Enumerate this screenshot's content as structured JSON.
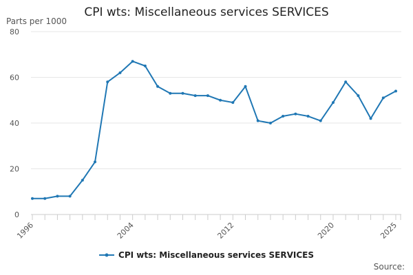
{
  "chart_data": {
    "type": "line",
    "title": "CPI wts: Miscellaneous services SERVICES",
    "ylabel": "Parts per 1000",
    "xlabel": "",
    "ylim": [
      0,
      80
    ],
    "yticks": [
      0,
      20,
      40,
      60,
      80
    ],
    "xlim": [
      1996,
      2025
    ],
    "xticks": [
      1996,
      2004,
      2012,
      2020,
      2025
    ],
    "grid": true,
    "legend_position": "bottom",
    "color": "#1f77b4",
    "series": [
      {
        "name": "CPI wts: Miscellaneous services SERVICES",
        "x": [
          1996,
          1997,
          1998,
          1999,
          2000,
          2001,
          2002,
          2003,
          2004,
          2005,
          2006,
          2007,
          2008,
          2009,
          2010,
          2011,
          2012,
          2013,
          2014,
          2015,
          2016,
          2017,
          2018,
          2019,
          2020,
          2021,
          2022,
          2023,
          2024,
          2025
        ],
        "values": [
          7,
          7,
          8,
          8,
          15,
          23,
          58,
          62,
          67,
          65,
          56,
          53,
          53,
          52,
          52,
          50,
          49,
          56,
          41,
          40,
          43,
          44,
          43,
          41,
          49,
          58,
          52,
          42,
          51,
          54
        ]
      }
    ]
  },
  "source_label": "Source:"
}
